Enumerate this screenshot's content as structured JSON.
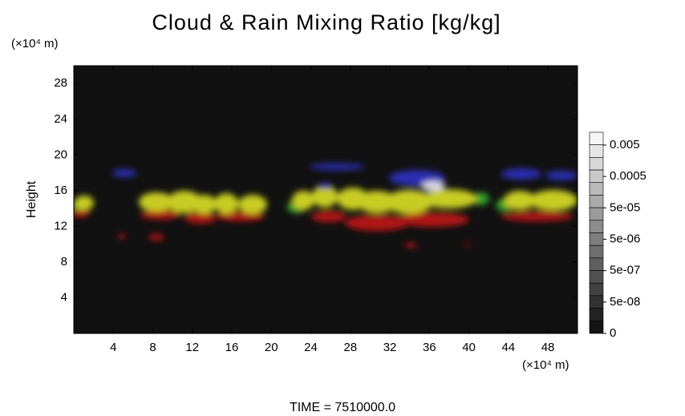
{
  "chart_data": {
    "type": "field",
    "title": "Cloud & Rain Mixing Ratio [kg/kg]",
    "y_unit": "(×10⁴ m)",
    "x_unit": "(×10⁴ m)",
    "ylabel": "Height",
    "xlim": [
      0,
      51
    ],
    "ylim": [
      0,
      30
    ],
    "xticks": [
      4,
      8,
      12,
      16,
      20,
      24,
      28,
      32,
      36,
      40,
      44,
      48
    ],
    "yticks": [
      4,
      8,
      12,
      16,
      20,
      24,
      28
    ],
    "colorbar_ticks": [
      0.005,
      0.0005,
      {
        "value": 5e-05,
        "label": "5e-05"
      },
      {
        "value": 5e-06,
        "label": "5e-06"
      },
      {
        "value": 5e-07,
        "label": "5e-07"
      },
      {
        "value": 5e-08,
        "label": "5e-08"
      },
      0
    ],
    "footer": "TIME = 7510000.0"
  }
}
